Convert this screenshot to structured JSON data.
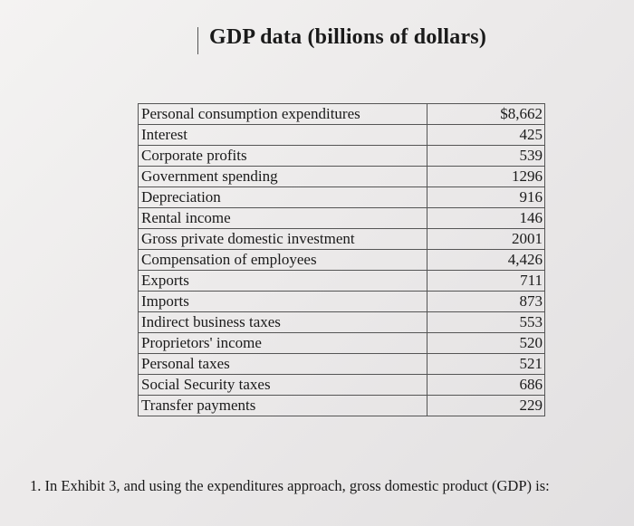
{
  "document": {
    "title": "GDP data (billions of dollars)",
    "table": {
      "rows": [
        {
          "label": "Personal consumption expenditures",
          "value": "$8,662"
        },
        {
          "label": "Interest",
          "value": "425"
        },
        {
          "label": "Corporate profits",
          "value": "539"
        },
        {
          "label": "Government spending",
          "value": "1296"
        },
        {
          "label": "Depreciation",
          "value": "916"
        },
        {
          "label": "Rental income",
          "value": "146"
        },
        {
          "label": "Gross private domestic investment",
          "value": "2001"
        },
        {
          "label": "Compensation of employees",
          "value": "4,426"
        },
        {
          "label": "Exports",
          "value": "711"
        },
        {
          "label": "Imports",
          "value": "873"
        },
        {
          "label": "Indirect business taxes",
          "value": "553"
        },
        {
          "label": "Proprietors' income",
          "value": "520"
        },
        {
          "label": "Personal taxes",
          "value": "521"
        },
        {
          "label": "Social Security taxes",
          "value": "686"
        },
        {
          "label": "Transfer payments",
          "value": "229"
        }
      ]
    },
    "question": "1. In Exhibit 3, and using the expenditures approach, gross domestic product (GDP) is:"
  }
}
